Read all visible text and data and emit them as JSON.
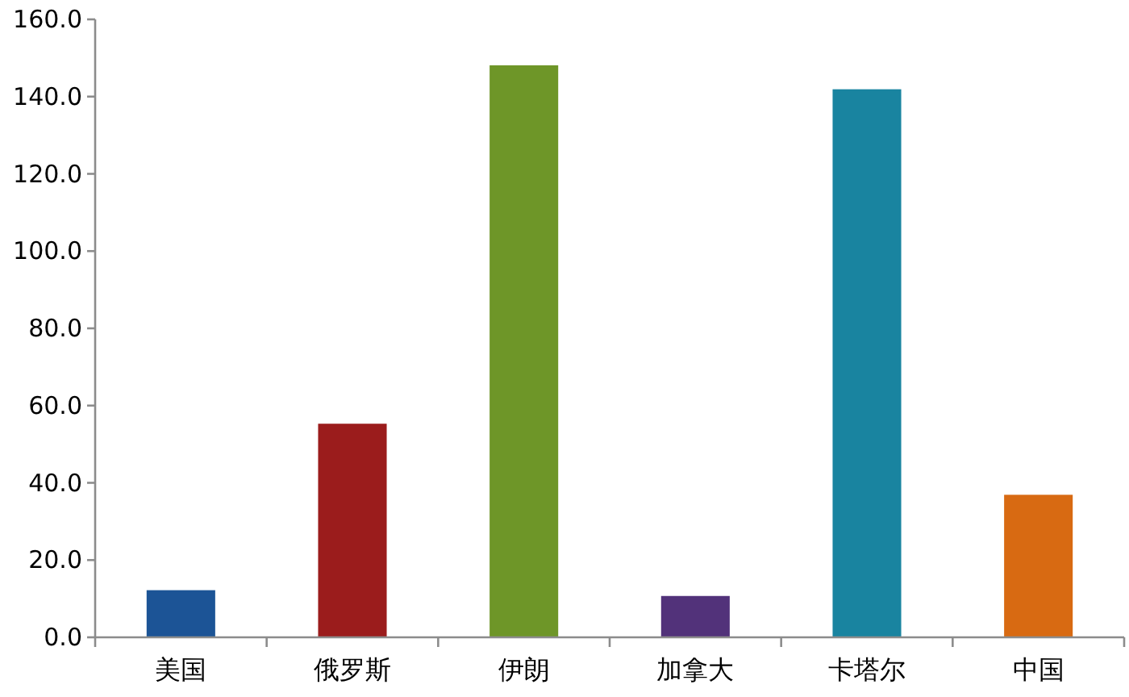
{
  "chart_data": {
    "type": "bar",
    "categories": [
      "美国",
      "俄罗斯",
      "伊朗",
      "加拿大",
      "卡塔尔",
      "中国"
    ],
    "values": [
      12.2,
      55.3,
      148.1,
      10.7,
      141.9,
      36.9
    ],
    "colors": [
      "#1c5496",
      "#9b1c1c",
      "#6e9628",
      "#52327a",
      "#1984a0",
      "#d86a12"
    ],
    "ylim": [
      0,
      160
    ],
    "yticks": [
      {
        "value": 0,
        "label": "0.0"
      },
      {
        "value": 20,
        "label": "20.0"
      },
      {
        "value": 40,
        "label": "40.0"
      },
      {
        "value": 60,
        "label": "60.0"
      },
      {
        "value": 80,
        "label": "80.0"
      },
      {
        "value": 100,
        "label": "100.0"
      },
      {
        "value": 120,
        "label": "120.0"
      },
      {
        "value": 140,
        "label": "140.0"
      },
      {
        "value": 160,
        "label": "160.0"
      }
    ]
  }
}
